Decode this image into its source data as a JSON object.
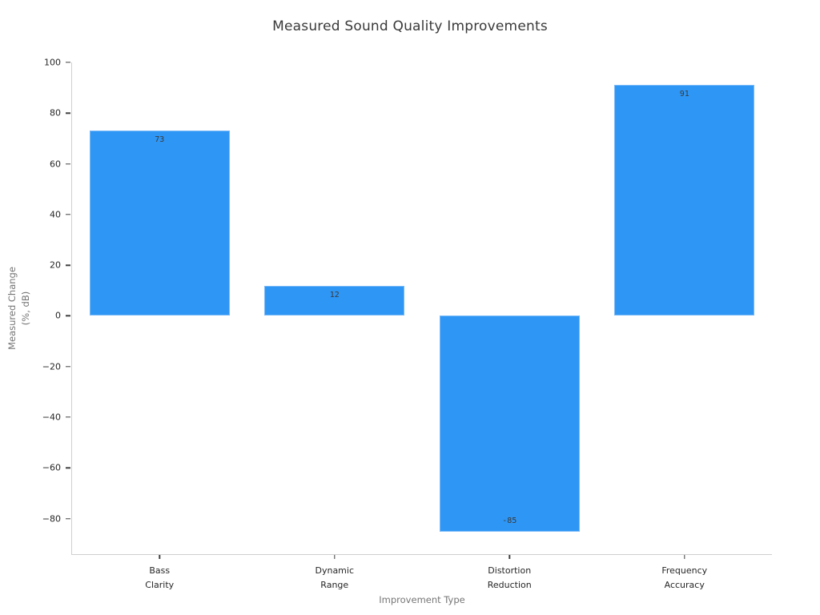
{
  "chart_data": {
    "type": "bar",
    "title": "Measured Sound Quality Improvements",
    "xlabel": "Improvement Type",
    "ylabel": "Measured Change\n(%, dB)",
    "categories": [
      "Bass\nClarity",
      "Dynamic\nRange",
      "Distortion\nReduction",
      "Frequency\nAccuracy"
    ],
    "values": [
      73,
      12,
      -85,
      91
    ],
    "bar_value_labels": [
      "73",
      "12",
      "-85",
      "91"
    ],
    "ylim": [
      -94,
      100
    ],
    "yticks": [
      {
        "value": 100,
        "label": "100"
      },
      {
        "value": 80,
        "label": "80"
      },
      {
        "value": 60,
        "label": "60"
      },
      {
        "value": 40,
        "label": "40"
      },
      {
        "value": 20,
        "label": "20"
      },
      {
        "value": 0,
        "label": "0"
      },
      {
        "value": -20,
        "label": "−20"
      },
      {
        "value": -40,
        "label": "−40"
      },
      {
        "value": -60,
        "label": "−60"
      },
      {
        "value": -80,
        "label": "−80"
      }
    ],
    "grid": false,
    "legend": null,
    "colors": {
      "bar_fill": "#2E96F5",
      "bar_edge": "#7ABAF8",
      "title_text": "#393939",
      "tick_label_text": "#262626",
      "axis_label_text": "#757575",
      "spine": "#CFCFCF",
      "tick_mark": "#404040",
      "bar_value_text": "#3A3A3A"
    }
  }
}
